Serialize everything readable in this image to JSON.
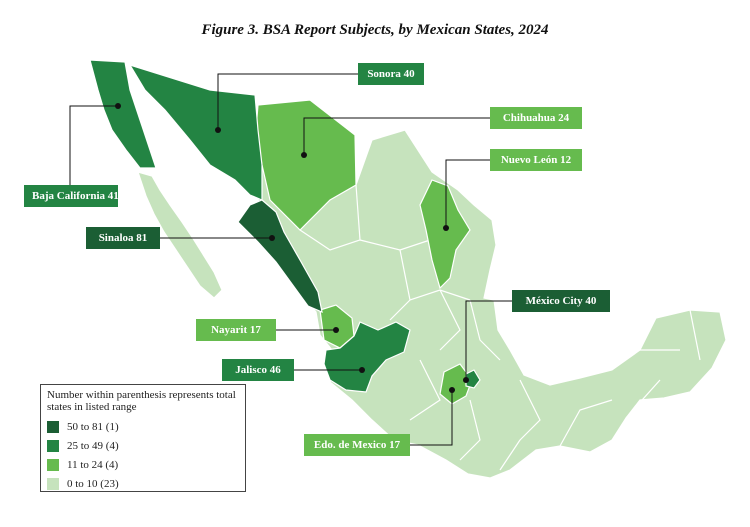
{
  "title": "Figure 3. BSA Report Subjects, by Mexican States, 2024",
  "colors": {
    "tier1": "#1b5e34",
    "tier2": "#238443",
    "tier3": "#66bb4e",
    "tier4": "#c6e3bd",
    "border": "#ffffff",
    "leader": "#111111"
  },
  "callouts": {
    "sonora": "Sonora 40",
    "chihuahua": "Chihuahua 24",
    "nuevo_leon": "Nuevo León 12",
    "baja_california": "Baja California 41",
    "sinaloa": "Sinaloa 81",
    "mexico_city": "México City 40",
    "nayarit": "Nayarit 17",
    "jalisco": "Jalisco 46",
    "edo_mexico": "Edo. de Mexico 17"
  },
  "legend": {
    "note": "Number within parenthesis represents total states in listed range",
    "items": [
      {
        "label": "50 to 81 (1)",
        "color": "#1b5e34"
      },
      {
        "label": "25 to 49 (4)",
        "color": "#238443"
      },
      {
        "label": "11 to 24 (4)",
        "color": "#66bb4e"
      },
      {
        "label": "0 to 10 (23)",
        "color": "#c6e3bd"
      }
    ]
  }
}
